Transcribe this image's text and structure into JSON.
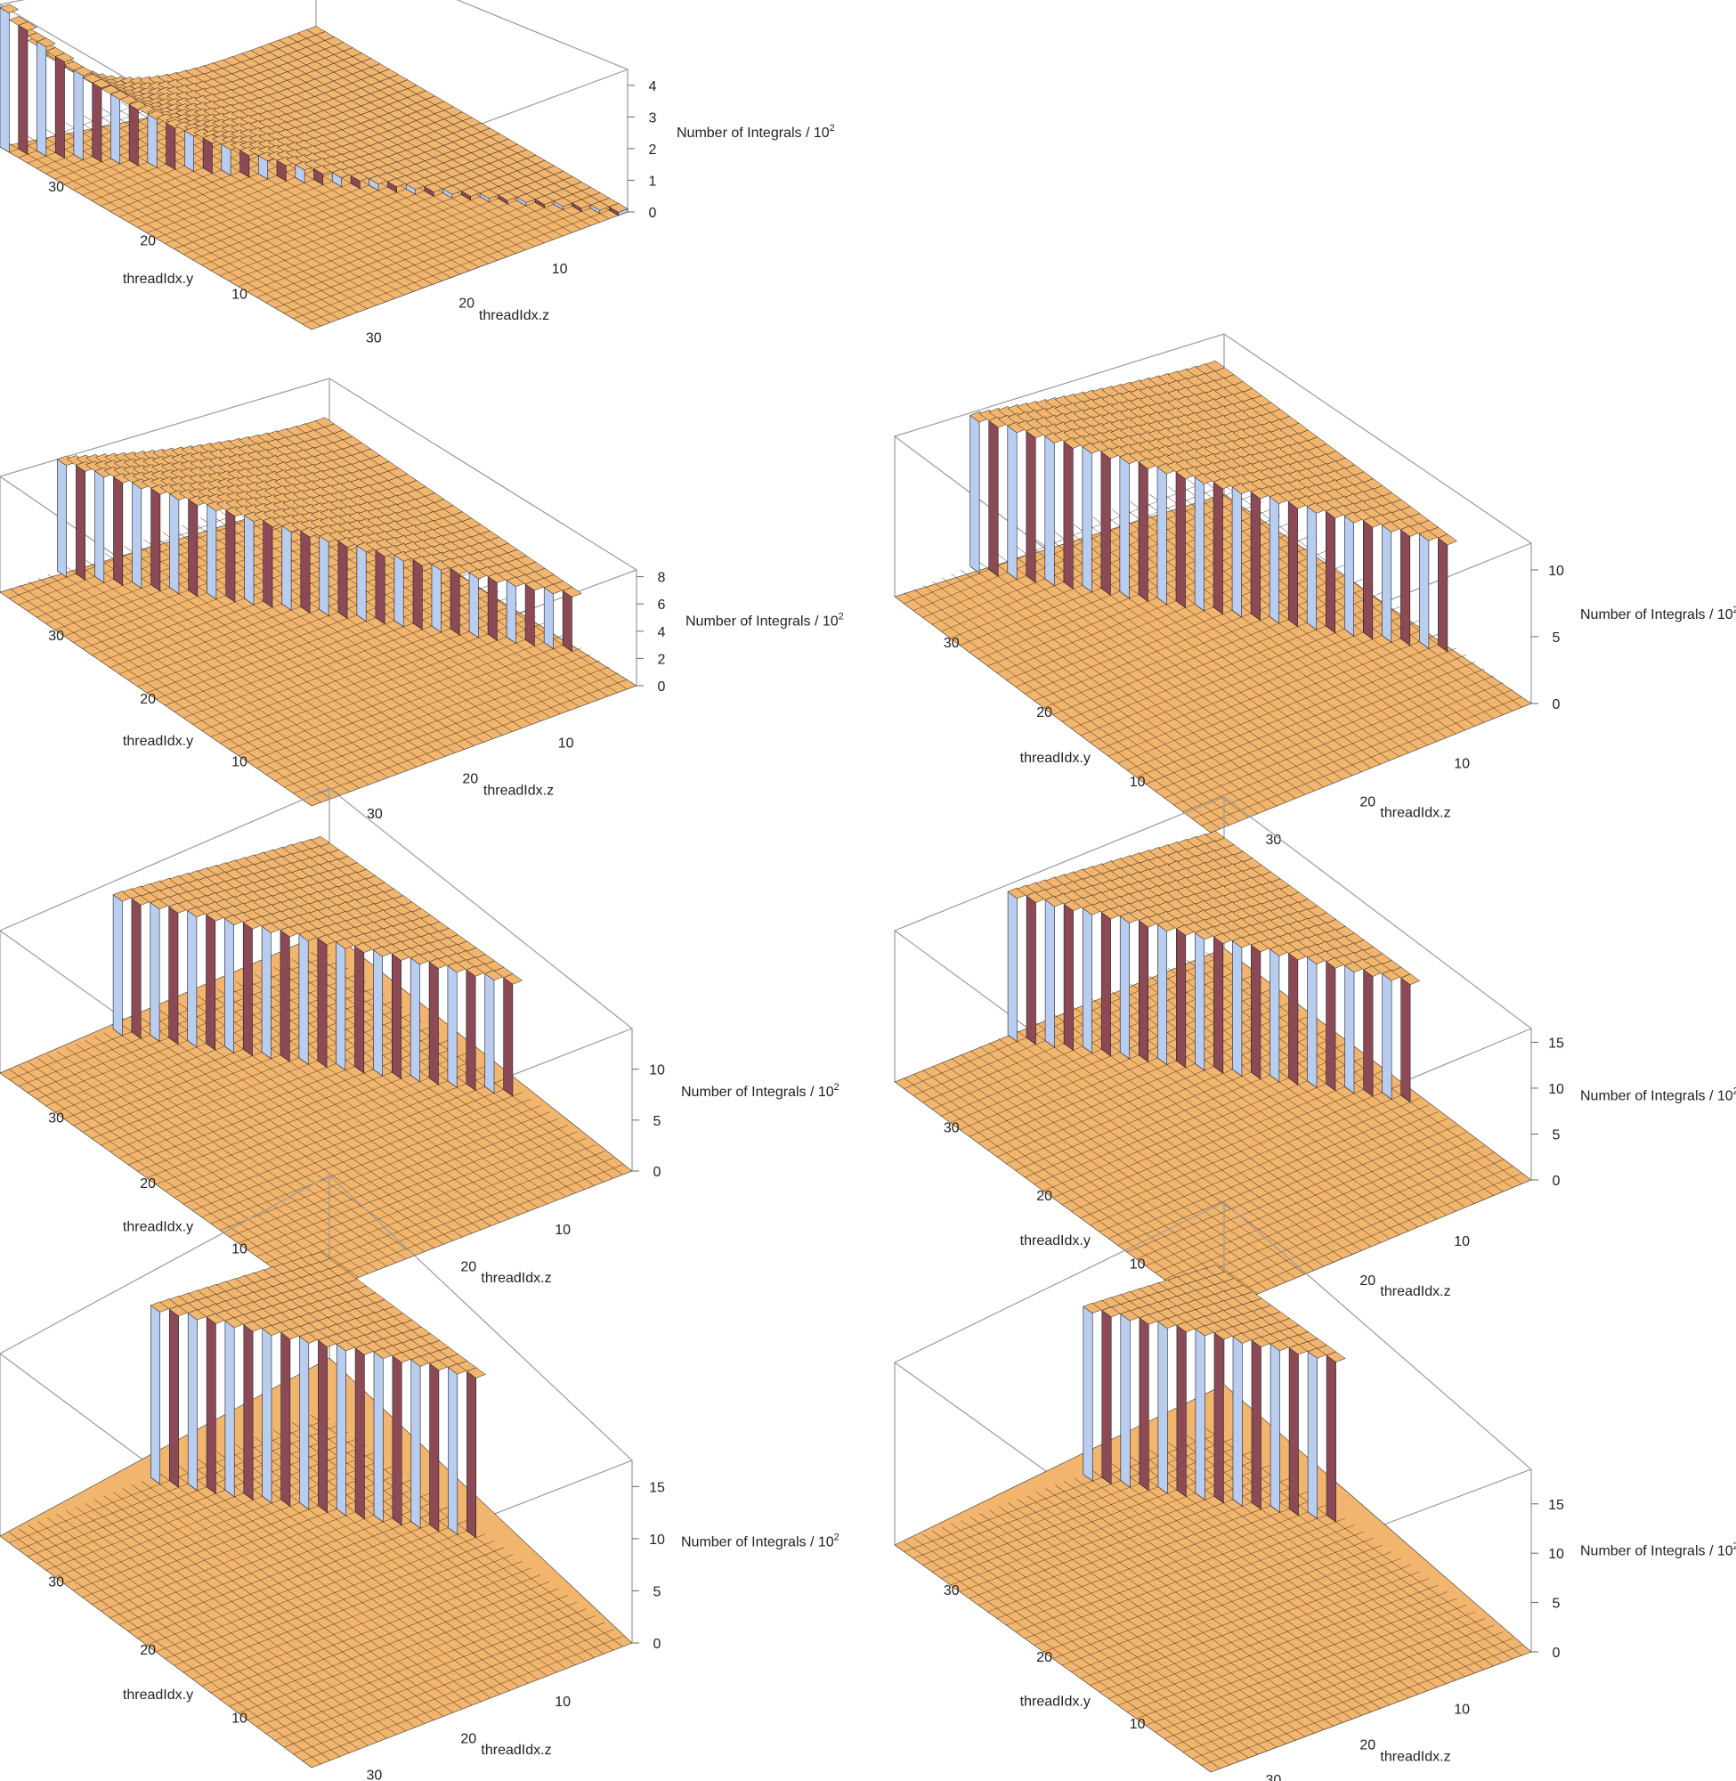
{
  "chart_data": [
    {
      "type": "bar3d",
      "panel": "plot-1",
      "y_label": "threadIdx.y",
      "x_label": "threadIdx.z",
      "z_label": "Number of Integrals / 10",
      "z_label_sup": "2",
      "y_ticks": [
        30,
        20,
        10
      ],
      "x_ticks": [
        10,
        20,
        30
      ],
      "z_ticks": [
        0,
        1,
        2,
        3,
        4
      ],
      "zlim": [
        0,
        4.5
      ],
      "grid_n": 34,
      "diagonal_offset": 0,
      "bar_top": 4.4,
      "bar_bottom": 0.1,
      "decay": 4.0,
      "colors": {
        "floor": "#f2b56e",
        "bar_a": "#b9cdf0",
        "bar_b": "#8b4a56"
      }
    },
    {
      "type": "bar3d",
      "panel": "plot-2",
      "y_label": "threadIdx.y",
      "x_label": "threadIdx.z",
      "z_label": "Number of Integrals / 10",
      "z_label_sup": "2",
      "y_ticks": [
        30,
        20,
        10
      ],
      "x_ticks": [
        10,
        20,
        30
      ],
      "z_ticks": [
        0,
        2,
        4,
        6,
        8
      ],
      "zlim": [
        0,
        8.5
      ],
      "grid_n": 34,
      "diagonal_offset": 6,
      "bar_top": 8.2,
      "bar_bottom": 4.0,
      "decay": 1.5,
      "colors": {
        "floor": "#f2b56e",
        "bar_a": "#b9cdf0",
        "bar_b": "#8b4a56"
      }
    },
    {
      "type": "bar3d",
      "panel": "plot-3",
      "y_label": "threadIdx.y",
      "x_label": "threadIdx.z",
      "z_label": "Number of Integrals / 10",
      "z_label_sup": "2",
      "y_ticks": [
        30,
        20,
        10
      ],
      "x_ticks": [
        10,
        20,
        30
      ],
      "z_ticks": [
        0,
        5,
        10
      ],
      "zlim": [
        0,
        12
      ],
      "grid_n": 34,
      "diagonal_offset": 8,
      "bar_top": 11.3,
      "bar_bottom": 8.0,
      "decay": 1.2,
      "colors": {
        "floor": "#f2b56e",
        "bar_a": "#b9cdf0",
        "bar_b": "#8b4a56"
      }
    },
    {
      "type": "bar3d",
      "panel": "plot-4",
      "y_label": "threadIdx.y",
      "x_label": "threadIdx.z",
      "z_label": "Number of Integrals / 10",
      "z_label_sup": "2",
      "y_ticks": [
        30,
        20,
        10
      ],
      "x_ticks": [
        10,
        20,
        30
      ],
      "z_ticks": [
        0,
        5,
        10
      ],
      "zlim": [
        0,
        14
      ],
      "grid_n": 34,
      "diagonal_offset": 12,
      "bar_top": 13.2,
      "bar_bottom": 11.0,
      "decay": 1.0,
      "colors": {
        "floor": "#f2b56e",
        "bar_a": "#b9cdf0",
        "bar_b": "#8b4a56"
      }
    },
    {
      "type": "bar3d",
      "panel": "plot-5",
      "y_label": "threadIdx.y",
      "x_label": "threadIdx.z",
      "z_label": "Number of Integrals / 10",
      "z_label_sup": "2",
      "y_ticks": [
        30,
        20,
        10
      ],
      "x_ticks": [
        10,
        20,
        30
      ],
      "z_ticks": [
        0,
        5,
        10,
        15
      ],
      "zlim": [
        0,
        16.5
      ],
      "grid_n": 34,
      "diagonal_offset": 12,
      "bar_top": 15.6,
      "bar_bottom": 12.8,
      "decay": 1.0,
      "colors": {
        "floor": "#f2b56e",
        "bar_a": "#b9cdf0",
        "bar_b": "#8b4a56"
      }
    },
    {
      "type": "bar3d",
      "panel": "plot-6",
      "y_label": "threadIdx.y",
      "x_label": "threadIdx.z",
      "z_label": "Number of Integrals / 10",
      "z_label_sup": "2",
      "y_ticks": [
        30,
        20,
        10
      ],
      "x_ticks": [
        10,
        20,
        30
      ],
      "z_ticks": [
        0,
        5,
        10,
        15
      ],
      "zlim": [
        0,
        17.5
      ],
      "grid_n": 34,
      "diagonal_offset": 16,
      "bar_top": 16.5,
      "bar_bottom": 15.3,
      "decay": 1.0,
      "colors": {
        "floor": "#f2b56e",
        "bar_a": "#b9cdf0",
        "bar_b": "#8b4a56"
      }
    },
    {
      "type": "bar3d",
      "panel": "plot-7",
      "y_label": "threadIdx.y",
      "x_label": "threadIdx.z",
      "z_label": "Number of Integrals / 10",
      "z_label_sup": "2",
      "y_ticks": [
        30,
        20,
        10
      ],
      "x_ticks": [
        10,
        20,
        30
      ],
      "z_ticks": [
        0,
        5,
        10,
        15
      ],
      "zlim": [
        0,
        18.5
      ],
      "grid_n": 34,
      "diagonal_offset": 20,
      "bar_top": 17.0,
      "bar_bottom": 16.2,
      "decay": 1.0,
      "colors": {
        "floor": "#f2b56e",
        "bar_a": "#b9cdf0",
        "bar_b": "#8b4a56"
      }
    }
  ]
}
